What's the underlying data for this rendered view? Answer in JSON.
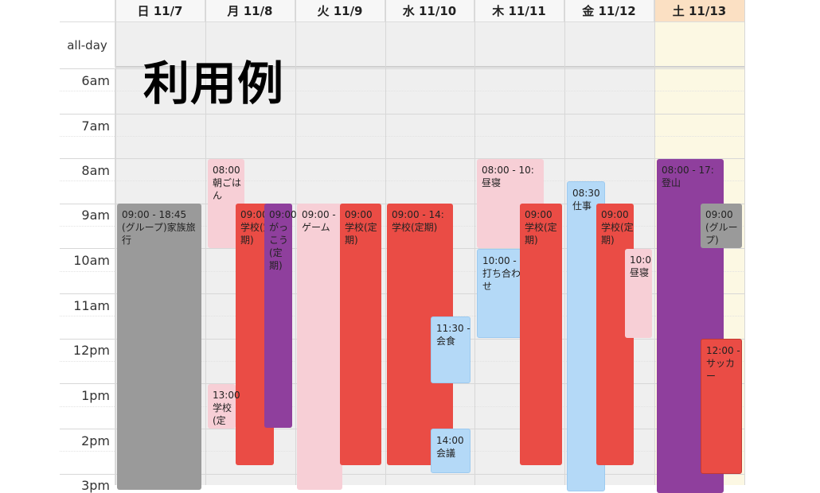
{
  "overlay_title": "利用例",
  "allday_label": "all-day",
  "days": [
    {
      "label": "日 11/7"
    },
    {
      "label": "月 11/8"
    },
    {
      "label": "火 11/9"
    },
    {
      "label": "水 11/10"
    },
    {
      "label": "木 11/11"
    },
    {
      "label": "金 11/12"
    },
    {
      "label": "土 11/13"
    }
  ],
  "hours": [
    "6am",
    "7am",
    "8am",
    "9am",
    "10am",
    "11am",
    "12pm",
    "1pm",
    "2pm",
    "3pm"
  ],
  "colors": {
    "red": "#ea4c45",
    "pink": "#f7cfd6",
    "blue": "#b4d9f7",
    "gray": "#9a9a9a",
    "purple": "#8f3f9d",
    "today_header": "#fbe0c3",
    "today_column": "#fcf8e3"
  },
  "events": [
    {
      "name": "event-sun-family-trip",
      "time": "09:00 - 18:45",
      "title": "(グループ)家族旅行",
      "color": "gray"
    },
    {
      "name": "event-mon-breakfast",
      "time": "08:00",
      "title": "朝ごはん",
      "color": "pink"
    },
    {
      "name": "event-mon-school-1",
      "time": "09:00",
      "title": "学校(定期)",
      "color": "red"
    },
    {
      "name": "event-mon-gakkou",
      "time": "09:00",
      "title": "がっこう(定期)",
      "color": "purple"
    },
    {
      "name": "event-mon-school-2",
      "time": "13:00",
      "title": "学校(定",
      "color": "pink"
    },
    {
      "name": "event-tue-game",
      "time": "09:00 -",
      "title": "ゲーム",
      "color": "pink"
    },
    {
      "name": "event-tue-school",
      "time": "09:00",
      "title": "学校(定期)",
      "color": "red"
    },
    {
      "name": "event-wed-school",
      "time": "09:00 - 14:",
      "title": "学校(定期)",
      "color": "red"
    },
    {
      "name": "event-wed-lunch",
      "time": "11:30 -",
      "title": "会食",
      "color": "blue"
    },
    {
      "name": "event-wed-meeting",
      "time": "14:00",
      "title": "会議",
      "color": "blue"
    },
    {
      "name": "event-thu-nap",
      "time": "08:00 - 10:",
      "title": "昼寝",
      "color": "pink"
    },
    {
      "name": "event-thu-meeting",
      "time": "10:00 -",
      "title": "打ち合わせ",
      "color": "blue"
    },
    {
      "name": "event-thu-school",
      "time": "09:00",
      "title": "学校(定期)",
      "color": "red"
    },
    {
      "name": "event-fri-work",
      "time": "08:30",
      "title": "仕事",
      "color": "blue"
    },
    {
      "name": "event-fri-school",
      "time": "09:00",
      "title": "学校(定期)",
      "color": "red"
    },
    {
      "name": "event-fri-nap",
      "time": "10:0",
      "title": "昼寝",
      "color": "pink"
    },
    {
      "name": "event-sat-hiking",
      "time": "08:00 - 17:",
      "title": "登山",
      "color": "purple"
    },
    {
      "name": "event-sat-group",
      "time": "09:00",
      "title": "(グループ)",
      "color": "gray"
    },
    {
      "name": "event-sat-soccer",
      "time": "12:00 -",
      "title": "サッカー",
      "color": "red"
    }
  ]
}
